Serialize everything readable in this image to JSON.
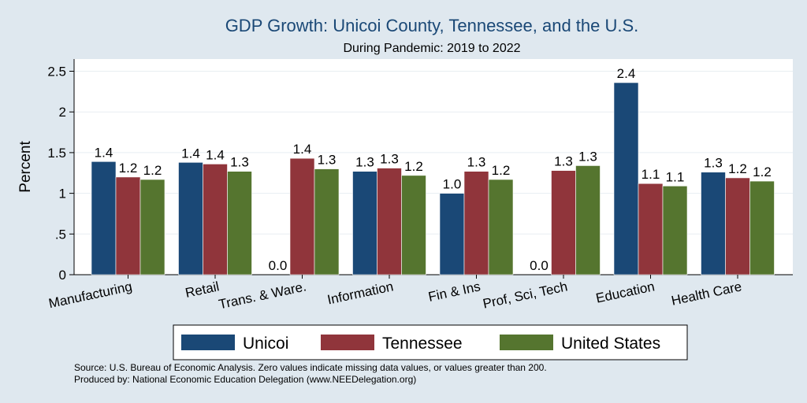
{
  "chart_data": {
    "type": "bar",
    "title": "GDP Growth: Unicoi County, Tennessee, and the U.S.",
    "subtitle": "During Pandemic: 2019 to 2022",
    "xlabel": "",
    "ylabel": "Percent",
    "ylim": [
      0,
      2.65
    ],
    "yticks": [
      {
        "value": 0,
        "label": "0"
      },
      {
        "value": 0.5,
        "label": ".5"
      },
      {
        "value": 1,
        "label": "1"
      },
      {
        "value": 1.5,
        "label": "1.5"
      },
      {
        "value": 2,
        "label": "2"
      },
      {
        "value": 2.5,
        "label": "2.5"
      }
    ],
    "grid": true,
    "legend_position": "bottom",
    "categories": [
      "Manufacturing",
      "Retail",
      "Trans. & Ware.",
      "Information",
      "Fin & Ins",
      "Prof, Sci, Tech",
      "Education",
      "Health Care"
    ],
    "series": [
      {
        "name": "Unicoi",
        "color": "#1a4876",
        "values": [
          1.39,
          1.38,
          0.0,
          1.27,
          1.0,
          0.0,
          2.36,
          1.26
        ],
        "labels": [
          "1.4",
          "1.4",
          "0.0",
          "1.3",
          "1.0",
          "0.0",
          "2.4",
          "1.3"
        ]
      },
      {
        "name": "Tennessee",
        "color": "#90353b",
        "values": [
          1.2,
          1.36,
          1.43,
          1.31,
          1.27,
          1.28,
          1.12,
          1.19
        ],
        "labels": [
          "1.2",
          "1.4",
          "1.4",
          "1.3",
          "1.3",
          "1.3",
          "1.1",
          "1.2"
        ]
      },
      {
        "name": "United States",
        "color": "#55752f",
        "values": [
          1.17,
          1.27,
          1.3,
          1.22,
          1.17,
          1.34,
          1.09,
          1.15
        ],
        "labels": [
          "1.2",
          "1.3",
          "1.3",
          "1.2",
          "1.2",
          "1.3",
          "1.1",
          "1.2"
        ]
      }
    ],
    "notes": [
      "Source: U.S. Bureau of Economic Analysis. Zero values indicate missing data values, or values greater than 200.",
      "Produced by: National Economic Education Delegation (www.NEEDelegation.org)"
    ]
  }
}
